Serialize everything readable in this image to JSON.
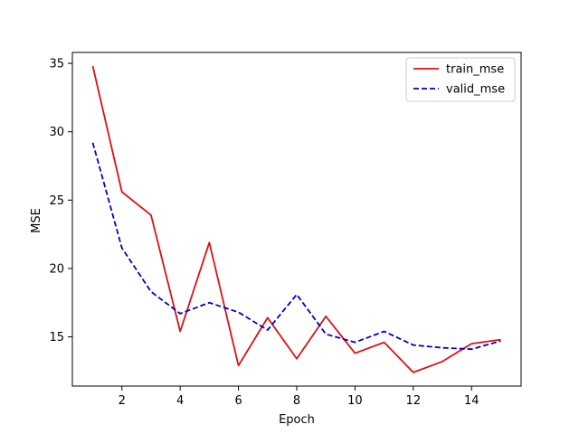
{
  "chart_data": {
    "type": "line",
    "title": "",
    "xlabel": "Epoch",
    "ylabel": "MSE",
    "xlim": [
      0.3,
      15.7
    ],
    "ylim": [
      11.4,
      35.8
    ],
    "xticks": [
      2,
      4,
      6,
      8,
      10,
      12,
      14
    ],
    "yticks": [
      15,
      20,
      25,
      30,
      35
    ],
    "x": [
      1,
      2,
      3,
      4,
      5,
      6,
      7,
      8,
      9,
      10,
      11,
      12,
      13,
      14,
      15
    ],
    "series": [
      {
        "name": "train_mse",
        "color": "#dd1111",
        "style": "solid",
        "values": [
          34.8,
          25.6,
          23.9,
          15.4,
          21.9,
          12.9,
          16.4,
          13.4,
          16.5,
          13.8,
          14.6,
          12.4,
          13.2,
          14.5,
          14.8
        ]
      },
      {
        "name": "valid_mse",
        "color": "#0000cc",
        "style": "dashed",
        "values": [
          29.2,
          21.5,
          18.3,
          16.7,
          17.5,
          16.8,
          15.5,
          18.1,
          15.2,
          14.6,
          15.4,
          14.4,
          14.2,
          14.1,
          14.7
        ]
      }
    ],
    "grid": false,
    "legend_position": "top-right"
  }
}
